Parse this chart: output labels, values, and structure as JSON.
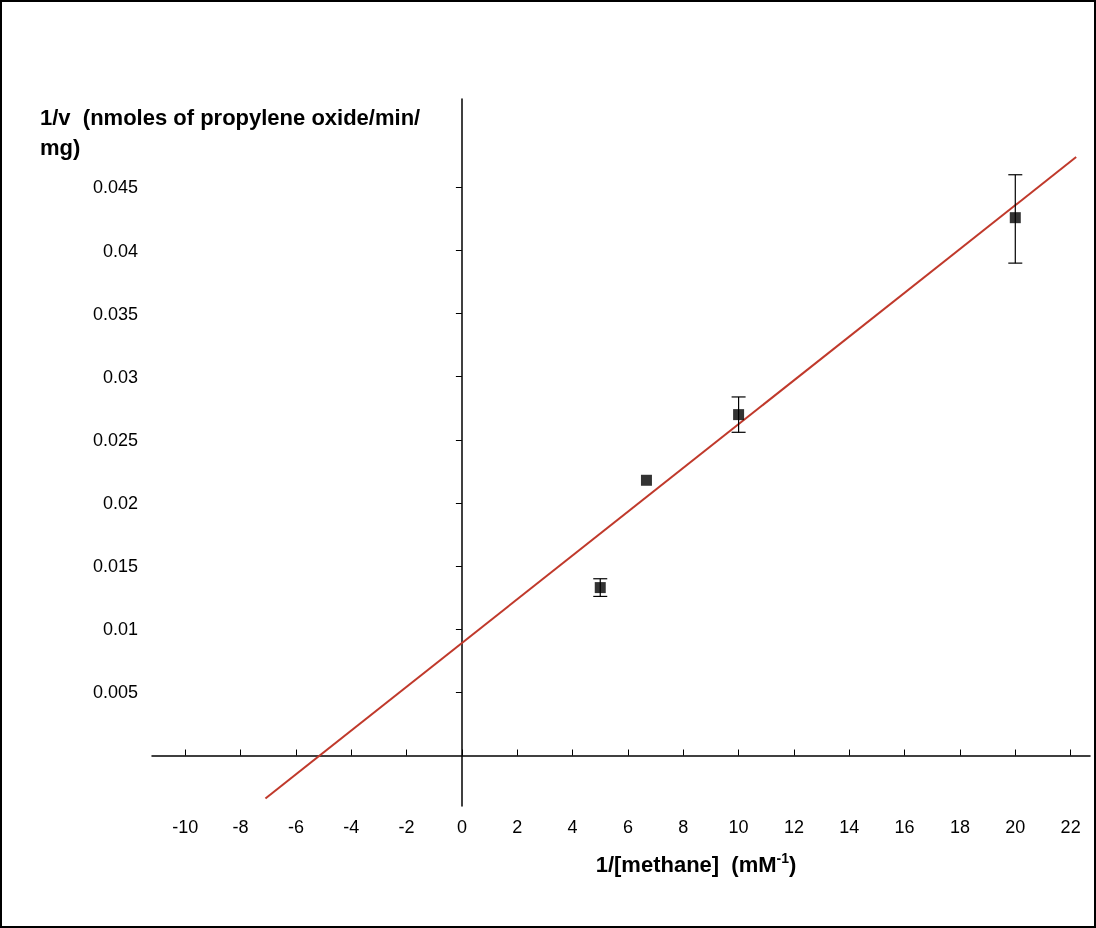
{
  "chart_data": {
    "type": "scatter",
    "ylabel": "1/v  (nmoles of propylene oxide/min/mg)",
    "xlabel": "1/[methane]  (mM$^{-1}$)",
    "xlim": [
      -11.2,
      22.7
    ],
    "xticks": [
      -10,
      -8,
      -6,
      -4,
      -2,
      0,
      2,
      4,
      6,
      8,
      10,
      12,
      14,
      16,
      18,
      20,
      22
    ],
    "ylim": [
      -0.004,
      0.052
    ],
    "yticks": [
      0.005,
      0.01,
      0.015,
      0.02,
      0.025,
      0.03,
      0.035,
      0.04,
      0.045
    ],
    "series": [
      {
        "marker": "square",
        "color": "#000000",
        "x": [
          5,
          6.67,
          10,
          20
        ],
        "values": [
          0.0133,
          0.0218,
          0.027,
          0.0426
        ],
        "errors": [
          0.0007,
          null,
          0.0014,
          [
            0.039,
            0.046
          ]
        ]
      },
      {
        "type": "line",
        "marker": "none",
        "color": "#c0392b",
        "x": [
          -7.1,
          22.2
        ],
        "values": [
          -0.0034,
          0.0474
        ]
      }
    ]
  }
}
